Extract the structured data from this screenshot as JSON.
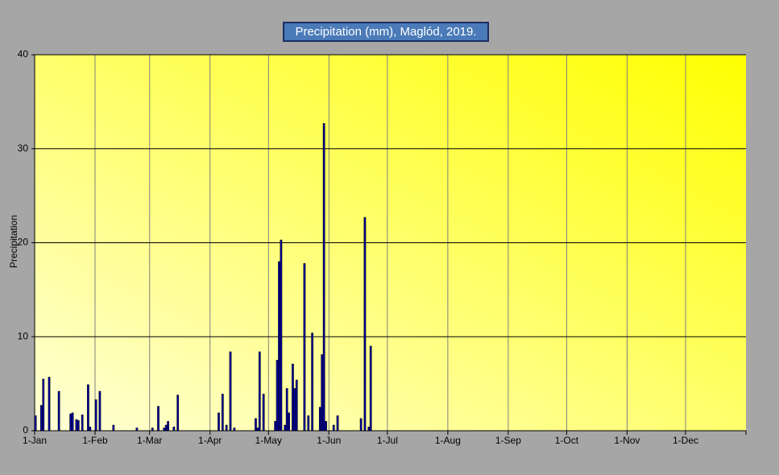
{
  "chart_data": {
    "type": "bar",
    "title": "Precipitation (mm), Maglód, 2019.",
    "y_label": "Precipitation",
    "x": [
      0,
      3,
      4,
      7,
      12,
      18,
      19,
      21,
      22,
      24,
      27,
      28,
      31,
      33,
      40,
      52,
      60,
      63,
      66,
      67,
      68,
      71,
      73,
      94,
      96,
      98,
      100,
      102,
      113,
      114,
      115,
      117,
      123,
      124,
      125,
      126,
      128,
      129,
      130,
      132,
      133,
      134,
      138,
      140,
      142,
      146,
      147,
      148,
      149,
      153,
      155,
      167,
      169,
      171,
      172
    ],
    "values": [
      1.6,
      2.7,
      5.5,
      5.7,
      4.2,
      1.8,
      1.9,
      1.2,
      1.1,
      1.7,
      4.9,
      0.4,
      3.3,
      4.2,
      0.6,
      0.3,
      0.3,
      2.6,
      0.3,
      0.6,
      1.0,
      0.4,
      3.8,
      1.9,
      3.9,
      0.6,
      8.4,
      0.3,
      1.3,
      0.3,
      8.4,
      3.9,
      1.0,
      7.5,
      18.0,
      20.3,
      0.6,
      4.5,
      1.9,
      7.1,
      4.5,
      5.4,
      17.8,
      1.6,
      10.4,
      2.5,
      8.1,
      32.7,
      1.0,
      0.6,
      1.6,
      1.3,
      22.7,
      0.4,
      9.0
    ],
    "color": "#0000a0",
    "xlim": [
      0,
      365
    ],
    "xticks": [
      {
        "value": 0,
        "label": "1-Jan"
      },
      {
        "value": 31,
        "label": "1-Feb"
      },
      {
        "value": 59,
        "label": "1-Mar"
      },
      {
        "value": 90,
        "label": "1-Apr"
      },
      {
        "value": 120,
        "label": "1-May"
      },
      {
        "value": 151,
        "label": "1-Jun"
      },
      {
        "value": 181,
        "label": "1-Jul"
      },
      {
        "value": 212,
        "label": "1-Aug"
      },
      {
        "value": 243,
        "label": "1-Sep"
      },
      {
        "value": 273,
        "label": "1-Oct"
      },
      {
        "value": 304,
        "label": "1-Nov"
      },
      {
        "value": 334,
        "label": "1-Dec"
      }
    ],
    "ylim": [
      0,
      40
    ],
    "yticks": [
      0,
      10,
      20,
      30,
      40
    ],
    "grid": true
  }
}
